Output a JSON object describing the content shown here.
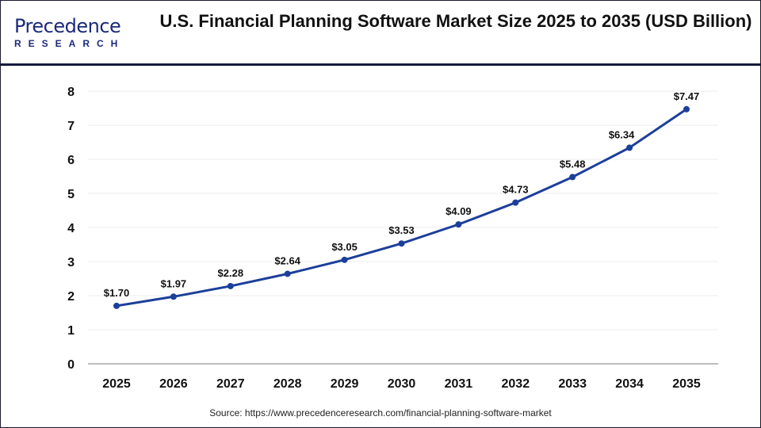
{
  "logo": {
    "line1": "Precedence",
    "line2": "RESEARCH"
  },
  "title": "U.S. Financial Planning Software Market Size 2025 to 2035 (USD Billion)",
  "source": "Source: https://www.precedenceresearch.com/financial-planning-software-market",
  "chart_data": {
    "type": "line",
    "title": "U.S. Financial Planning Software Market Size 2025 to 2035 (USD Billion)",
    "xlabel": "",
    "ylabel": "",
    "categories": [
      "2025",
      "2026",
      "2027",
      "2028",
      "2029",
      "2030",
      "2031",
      "2032",
      "2033",
      "2034",
      "2035"
    ],
    "values": [
      1.7,
      1.97,
      2.28,
      2.64,
      3.05,
      3.53,
      4.09,
      4.73,
      5.48,
      6.34,
      7.47
    ],
    "data_labels": [
      "$1.70",
      "$1.97",
      "$2.28",
      "$2.64",
      "$3.05",
      "$3.53",
      "$4.09",
      "$4.73",
      "$5.48",
      "$6.34",
      "$7.47"
    ],
    "ylim": [
      0,
      8
    ],
    "yticks": [
      "0",
      "1",
      "2",
      "3",
      "4",
      "5",
      "6",
      "7",
      "8"
    ],
    "grid": true,
    "line_color": "#1c3f9a"
  }
}
